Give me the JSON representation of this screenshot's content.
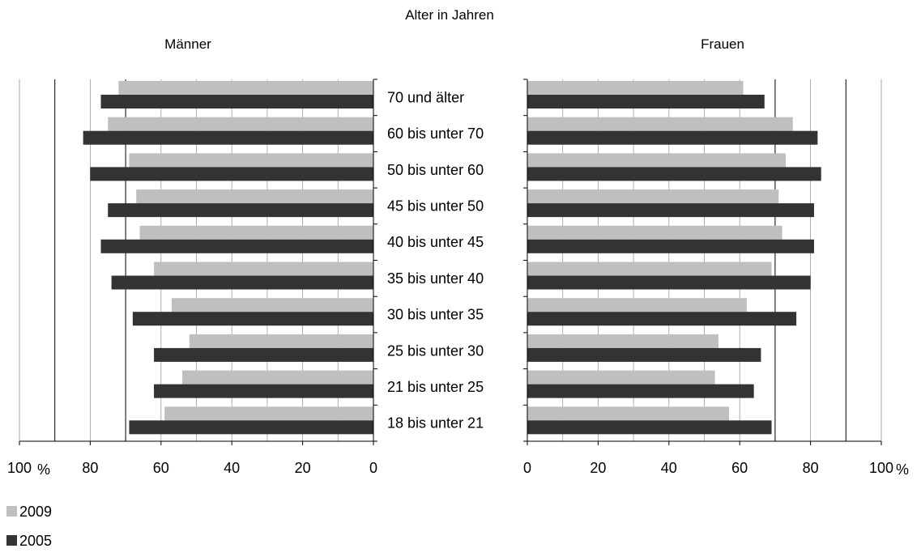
{
  "chart_data": {
    "type": "bar",
    "title": "Alter in Jahren",
    "unit": "%",
    "categories": [
      "70 und älter",
      "60 bis unter 70",
      "50 bis unter 60",
      "45 bis unter 50",
      "40 bis unter 45",
      "35 bis unter 40",
      "30 bis unter 35",
      "25 bis unter 30",
      "21 bis unter 25",
      "18 bis unter 21"
    ],
    "xlim": [
      0,
      100
    ],
    "ticks": [
      "0",
      "20",
      "40",
      "60",
      "80",
      "100"
    ],
    "grid": true,
    "legend_position": "bottom-left",
    "series_colors": {
      "2009": "#bfbfbf",
      "2005": "#333333"
    },
    "legend": [
      {
        "name": "2009",
        "color": "#bfbfbf"
      },
      {
        "name": "2005",
        "color": "#333333"
      }
    ],
    "panels": [
      {
        "name": "Männer",
        "series": [
          {
            "name": "2009",
            "values": [
              72,
              75,
              69,
              67,
              66,
              62,
              57,
              52,
              54,
              59
            ]
          },
          {
            "name": "2005",
            "values": [
              77,
              82,
              80,
              75,
              77,
              74,
              68,
              62,
              62,
              69
            ]
          }
        ]
      },
      {
        "name": "Frauen",
        "series": [
          {
            "name": "2009",
            "values": [
              61,
              75,
              73,
              71,
              72,
              69,
              62,
              54,
              53,
              57
            ]
          },
          {
            "name": "2005",
            "values": [
              67,
              82,
              83,
              81,
              81,
              80,
              76,
              66,
              64,
              69
            ]
          }
        ]
      }
    ]
  }
}
